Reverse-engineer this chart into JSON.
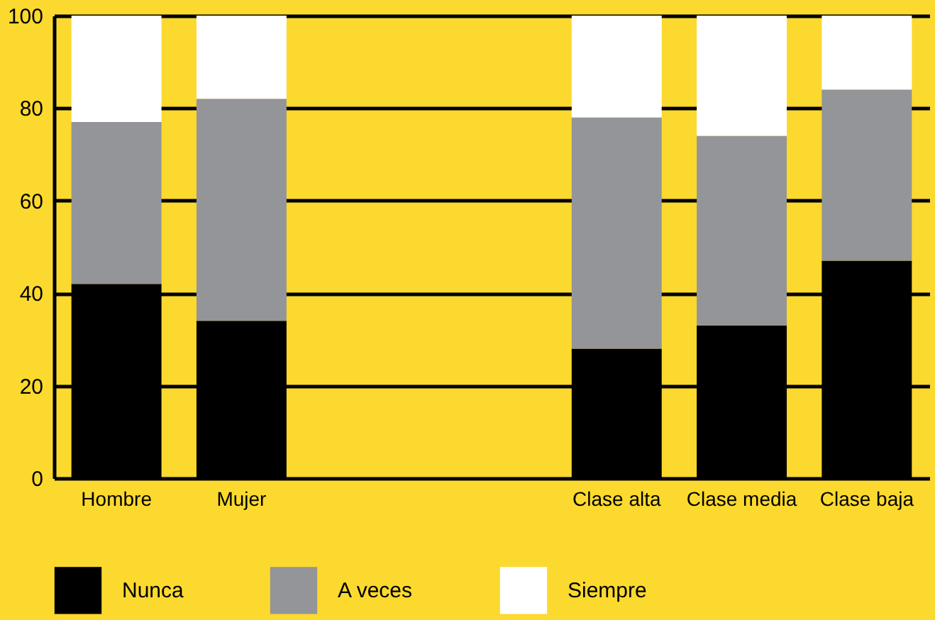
{
  "chart_data": {
    "type": "bar",
    "stacked": true,
    "categories": [
      "Hombre",
      "Mujer",
      null,
      null,
      "Clase alta",
      "Clase media",
      "Clase baja"
    ],
    "series": [
      {
        "name": "Nunca",
        "color": "#000000",
        "values": [
          42,
          34,
          null,
          null,
          28,
          33,
          47
        ]
      },
      {
        "name": "A veces",
        "color": "#939598",
        "values": [
          35,
          48,
          null,
          null,
          50,
          41,
          37
        ]
      },
      {
        "name": "Siempre",
        "color": "#ffffff",
        "values": [
          23,
          18,
          null,
          null,
          22,
          26,
          16
        ]
      }
    ],
    "ylim": [
      0,
      100
    ],
    "yticks": [
      0,
      20,
      40,
      60,
      80,
      100
    ],
    "grid": "y",
    "legend": "bottom"
  }
}
